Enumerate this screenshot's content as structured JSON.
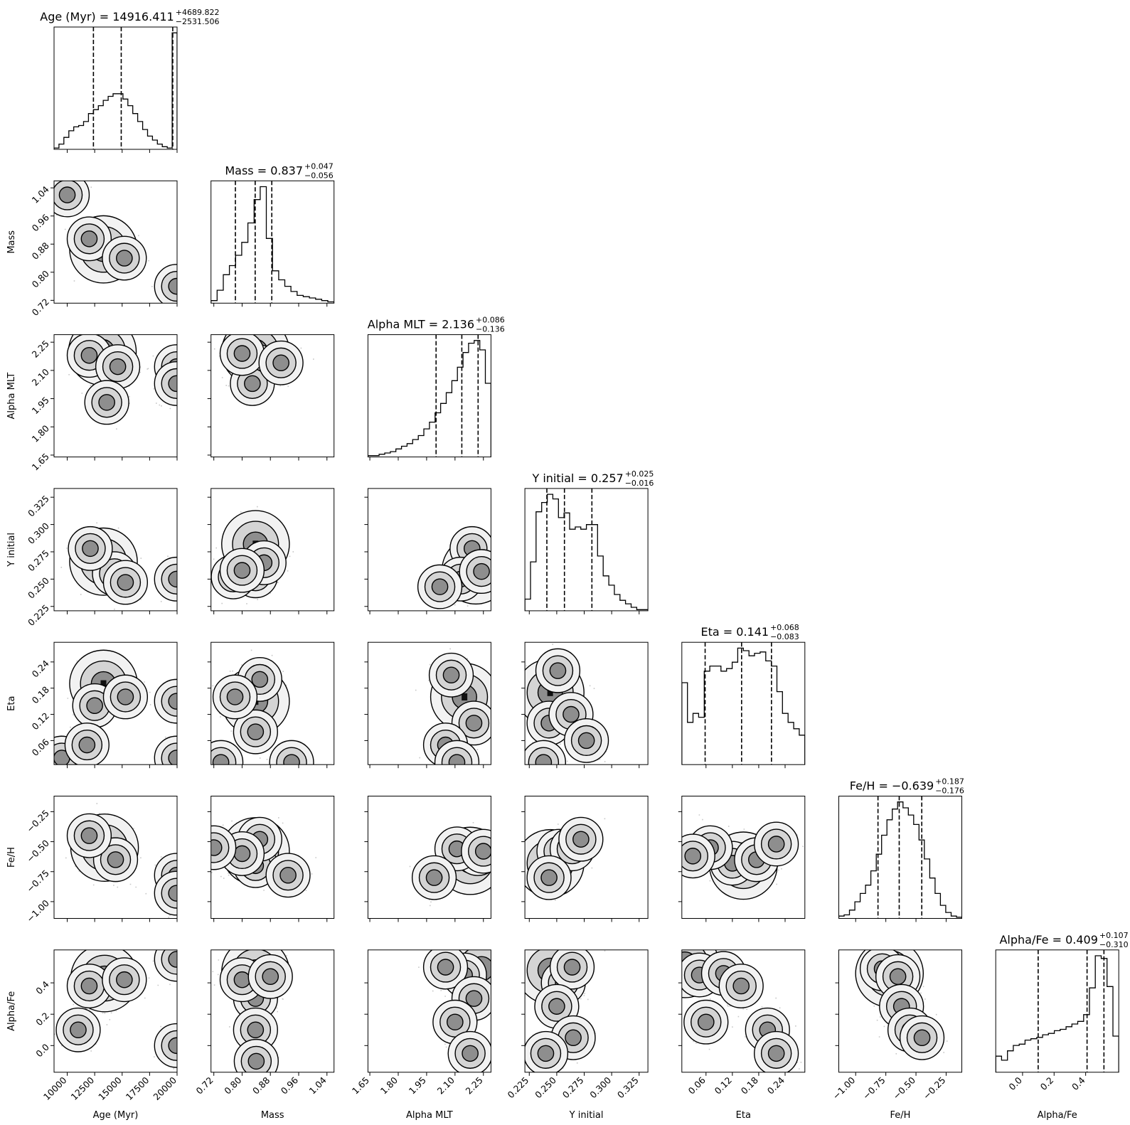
{
  "chart_data": {
    "type": "corner",
    "parameters": [
      "Age (Myr)",
      "Mass",
      "Alpha MLT",
      "Y initial",
      "Eta",
      "Fe/H",
      "Alpha/Fe"
    ],
    "axis_labels": [
      "Age (Myr)",
      "Mass",
      "Alpha MLT",
      "Y initial",
      "Eta",
      "Fe/H",
      "Alpha/Fe"
    ],
    "ranges": [
      [
        8800,
        20000
      ],
      [
        0.712,
        1.06
      ],
      [
        1.64,
        2.29
      ],
      [
        0.221,
        0.333
      ],
      [
        0.005,
        0.285
      ],
      [
        -1.14,
        -0.12
      ],
      [
        -0.17,
        0.61
      ]
    ],
    "ticks": [
      [
        10000,
        12500,
        15000,
        17500,
        20000
      ],
      [
        0.72,
        0.8,
        0.88,
        0.96,
        1.04
      ],
      [
        1.65,
        1.8,
        1.95,
        2.1,
        2.25
      ],
      [
        0.225,
        0.25,
        0.275,
        0.3,
        0.325
      ],
      [
        0.06,
        0.12,
        0.18,
        0.24
      ],
      [
        -1.0,
        -0.75,
        -0.5,
        -0.25
      ],
      [
        0.0,
        0.2,
        0.4
      ]
    ],
    "tick_labels": [
      [
        "10000",
        "12500",
        "15000",
        "17500",
        "20000"
      ],
      [
        "0.72",
        "0.80",
        "0.88",
        "0.96",
        "1.04"
      ],
      [
        "1.65",
        "1.80",
        "1.95",
        "2.10",
        "2.25"
      ],
      [
        "0.225",
        "0.250",
        "0.275",
        "0.300",
        "0.325"
      ],
      [
        "0.06",
        "0.12",
        "0.18",
        "0.24"
      ],
      [
        "−1.00",
        "−0.75",
        "−0.50",
        "−0.25"
      ],
      [
        "0.0",
        "0.2",
        "0.4"
      ]
    ],
    "titles": [
      {
        "label": "Age (Myr) = 14916.411",
        "plus": "+4689.822",
        "minus": "−2531.506"
      },
      {
        "label": "Mass = 0.837",
        "plus": "+0.047",
        "minus": "−0.056"
      },
      {
        "label": "Alpha MLT = 2.136",
        "plus": "+0.086",
        "minus": "−0.136"
      },
      {
        "label": "Y initial = 0.257",
        "plus": "+0.025",
        "minus": "−0.016"
      },
      {
        "label": "Eta = 0.141",
        "plus": "+0.068",
        "minus": "−0.083"
      },
      {
        "label": "Fe/H = −0.639",
        "plus": "+0.187",
        "minus": "−0.176"
      },
      {
        "label": "Alpha/Fe = 0.409",
        "plus": "+0.107",
        "minus": "−0.310"
      }
    ],
    "quantiles": [
      [
        12385,
        14916,
        19606
      ],
      [
        0.781,
        0.837,
        0.884
      ],
      [
        2.0,
        2.136,
        2.222
      ],
      [
        0.241,
        0.257,
        0.282
      ],
      [
        0.058,
        0.141,
        0.209
      ],
      [
        -0.815,
        -0.639,
        -0.452
      ],
      [
        0.099,
        0.409,
        0.516
      ]
    ],
    "marginal_counts": [
      [
        1,
        4,
        9,
        14,
        17,
        18,
        21,
        27,
        30,
        33,
        37,
        40,
        42,
        42,
        38,
        33,
        27,
        21,
        15,
        10,
        7,
        4,
        2,
        1,
        88
      ],
      [
        2,
        10,
        22,
        29,
        37,
        47,
        62,
        80,
        90,
        50,
        25,
        18,
        13,
        9,
        6,
        5,
        4,
        3,
        2,
        1
      ],
      [
        1,
        1,
        2,
        3,
        4,
        6,
        8,
        10,
        13,
        16,
        21,
        26,
        33,
        40,
        48,
        57,
        67,
        78,
        85,
        87,
        80,
        55
      ],
      [
        10,
        42,
        85,
        93,
        100,
        96,
        80,
        84,
        70,
        72,
        70,
        74,
        74,
        47,
        30,
        22,
        14,
        9,
        6,
        3,
        1,
        1
      ],
      [
        64,
        33,
        40,
        37,
        73,
        77,
        77,
        73,
        75,
        80,
        91,
        89,
        85,
        87,
        88,
        81,
        77,
        57,
        40,
        33,
        28,
        23
      ],
      [
        2,
        3,
        7,
        14,
        21,
        28,
        40,
        54,
        70,
        83,
        92,
        98,
        93,
        87,
        79,
        66,
        50,
        34,
        21,
        11,
        5,
        2,
        1
      ],
      [
        12,
        9,
        16,
        20,
        21,
        24,
        25,
        26,
        28,
        29,
        31,
        32,
        34,
        36,
        38,
        43,
        63,
        87,
        85,
        64,
        27
      ]
    ],
    "peaks": [
      [
        [
          13300,
          0.865
        ],
        [
          12000,
          0.895
        ],
        [
          15200,
          0.84
        ],
        [
          19950,
          0.76
        ],
        [
          10000,
          1.02
        ]
      ],
      [
        [
          13200,
          2.2
        ],
        [
          12000,
          2.18
        ],
        [
          14600,
          2.12
        ],
        [
          19950,
          2.12
        ],
        [
          19950,
          2.03
        ],
        [
          13600,
          1.93
        ]
      ],
      [
        [
          0.838,
          2.2
        ],
        [
          0.845,
          2.12
        ],
        [
          0.829,
          2.03
        ],
        [
          0.8,
          2.19
        ],
        [
          0.91,
          2.14
        ]
      ],
      [
        [
          13300,
          0.266
        ],
        [
          14300,
          0.255
        ],
        [
          12100,
          0.278
        ],
        [
          15300,
          0.247
        ],
        [
          19950,
          0.25
        ]
      ],
      [
        [
          0.838,
          0.282
        ],
        [
          0.838,
          0.253
        ],
        [
          0.775,
          0.252
        ],
        [
          0.862,
          0.265
        ],
        [
          0.8,
          0.258
        ]
      ],
      [
        [
          2.21,
          0.258
        ],
        [
          2.19,
          0.278
        ],
        [
          2.13,
          0.25
        ],
        [
          2.02,
          0.243
        ],
        [
          2.24,
          0.257
        ]
      ],
      [
        [
          13300,
          0.19
        ],
        [
          12500,
          0.14
        ],
        [
          15300,
          0.16
        ],
        [
          19950,
          0.15
        ],
        [
          19950,
          0.02
        ],
        [
          9500,
          0.02
        ],
        [
          11800,
          0.05
        ]
      ],
      [
        [
          0.838,
          0.15
        ],
        [
          0.838,
          0.08
        ],
        [
          0.85,
          0.2
        ],
        [
          0.78,
          0.16
        ],
        [
          0.94,
          0.01
        ],
        [
          0.74,
          0.01
        ]
      ],
      [
        [
          2.15,
          0.16
        ],
        [
          2.08,
          0.21
        ],
        [
          2.2,
          0.1
        ],
        [
          2.05,
          0.05
        ],
        [
          2.11,
          0.01
        ]
      ],
      [
        [
          0.244,
          0.17
        ],
        [
          0.251,
          0.22
        ],
        [
          0.243,
          0.1
        ],
        [
          0.263,
          0.12
        ],
        [
          0.277,
          0.06
        ],
        [
          0.238,
          0.01
        ]
      ],
      [
        [
          13400,
          -0.55
        ],
        [
          14400,
          -0.65
        ],
        [
          12000,
          -0.45
        ],
        [
          19950,
          -0.78
        ],
        [
          19950,
          -0.93
        ]
      ],
      [
        [
          0.838,
          -0.58
        ],
        [
          0.838,
          -0.7
        ],
        [
          0.85,
          -0.48
        ],
        [
          0.8,
          -0.6
        ],
        [
          0.93,
          -0.78
        ],
        [
          0.72,
          -0.55
        ]
      ],
      [
        [
          2.18,
          -0.66
        ],
        [
          2.22,
          -0.6
        ],
        [
          2.11,
          -0.56
        ],
        [
          2.25,
          -0.58
        ],
        [
          1.99,
          -0.8
        ]
      ],
      [
        [
          0.244,
          -0.68
        ],
        [
          0.252,
          -0.58
        ],
        [
          0.264,
          -0.56
        ],
        [
          0.243,
          -0.8
        ],
        [
          0.272,
          -0.48
        ]
      ],
      [
        [
          0.145,
          -0.7
        ],
        [
          0.12,
          -0.68
        ],
        [
          0.175,
          -0.65
        ],
        [
          0.07,
          -0.55
        ],
        [
          0.22,
          -0.52
        ],
        [
          0.03,
          -0.62
        ]
      ],
      [
        [
          13400,
          0.43
        ],
        [
          12000,
          0.38
        ],
        [
          15200,
          0.42
        ],
        [
          19950,
          0.55
        ],
        [
          19950,
          0.0
        ],
        [
          11000,
          0.1
        ]
      ],
      [
        [
          0.838,
          0.47
        ],
        [
          0.838,
          0.3
        ],
        [
          0.8,
          0.42
        ],
        [
          0.88,
          0.44
        ],
        [
          0.838,
          0.1
        ],
        [
          0.84,
          -0.1
        ]
      ],
      [
        [
          2.24,
          0.49
        ],
        [
          2.15,
          0.45
        ],
        [
          2.05,
          0.5
        ],
        [
          2.2,
          0.3
        ],
        [
          2.1,
          0.15
        ],
        [
          2.18,
          -0.05
        ]
      ],
      [
        [
          0.244,
          0.48
        ],
        [
          0.256,
          0.4
        ],
        [
          0.264,
          0.5
        ],
        [
          0.25,
          0.25
        ],
        [
          0.265,
          0.05
        ],
        [
          0.24,
          -0.05
        ]
      ],
      [
        [
          0.012,
          0.52
        ],
        [
          0.045,
          0.45
        ],
        [
          0.1,
          0.46
        ],
        [
          0.14,
          0.38
        ],
        [
          0.06,
          0.15
        ],
        [
          0.2,
          0.1
        ],
        [
          0.22,
          -0.05
        ]
      ],
      [
        [
          -0.72,
          0.46
        ],
        [
          -0.78,
          0.49
        ],
        [
          -0.65,
          0.44
        ],
        [
          -0.62,
          0.25
        ],
        [
          -0.55,
          0.1
        ],
        [
          -0.45,
          0.05
        ]
      ]
    ]
  }
}
